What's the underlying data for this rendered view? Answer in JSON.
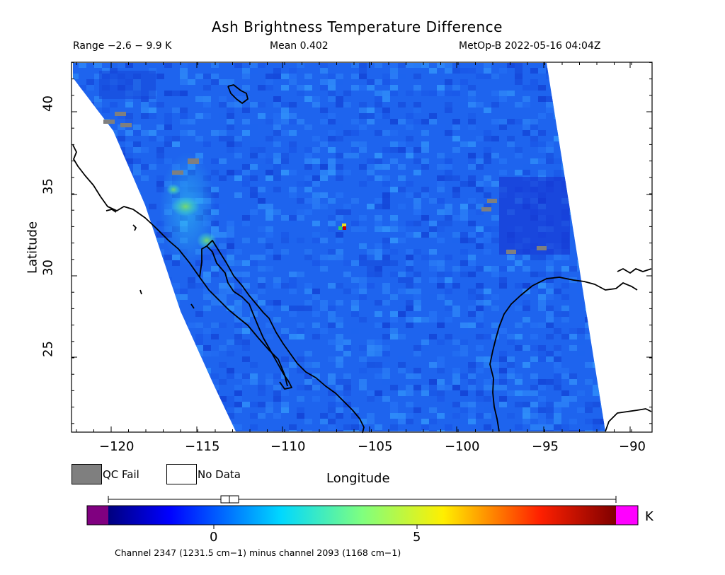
{
  "header": {
    "title": "Ash Brightness Temperature Difference",
    "range": "Range −2.6 − 9.9 K",
    "mean": "Mean 0.402",
    "satellite_time": "MetOp-B 2022-05-16 04:04Z"
  },
  "axes": {
    "xlabel": "Longitude",
    "ylabel": "Latitude",
    "x_ticks": [
      "−120",
      "−115",
      "−110",
      "−105",
      "−100",
      "−95",
      "−90"
    ],
    "y_ticks": [
      "40",
      "35",
      "30",
      "25"
    ]
  },
  "legend": {
    "qc_fail_label": "QC Fail",
    "no_data_label": "No Data",
    "qc_fail_color": "#7f7f7f",
    "no_data_color": "#ffffff"
  },
  "colorbar": {
    "unit": "K",
    "tick_labels": [
      "0",
      "5"
    ],
    "under_color": "#800080",
    "over_color": "#ff00ff",
    "caption": "Channel 2347 (1231.5 cm−1) minus channel 2093 (1168 cm−1)"
  },
  "colors": {
    "field_base": "#1e64f0",
    "coastline": "#000000"
  }
}
